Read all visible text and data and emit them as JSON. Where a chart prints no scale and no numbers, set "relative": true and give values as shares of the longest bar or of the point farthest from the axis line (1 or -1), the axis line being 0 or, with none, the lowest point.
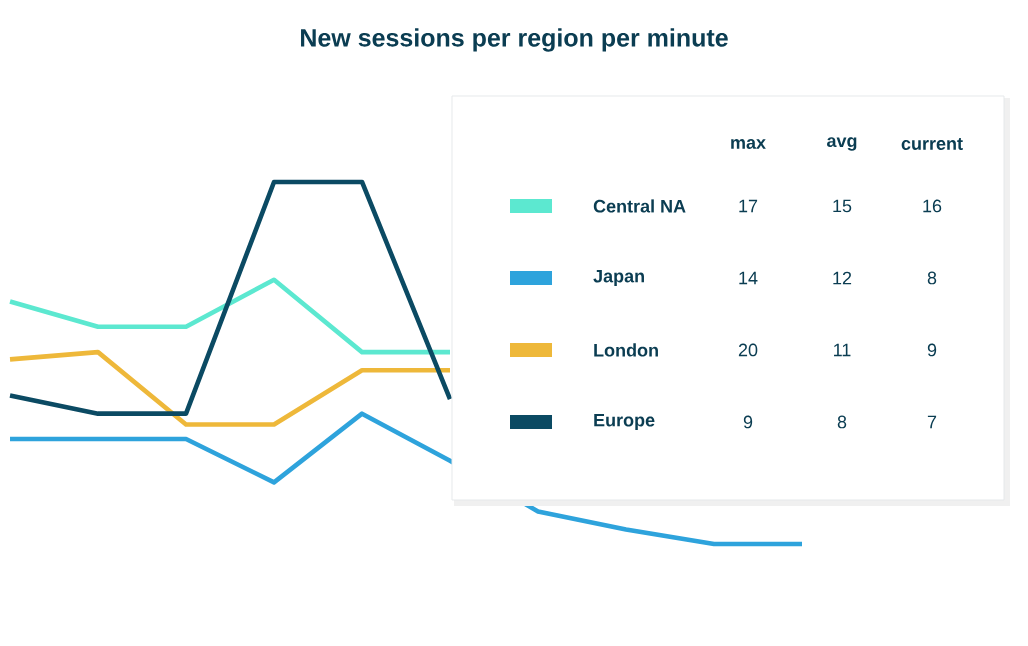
{
  "chart_data": {
    "type": "line",
    "title": "New sessions per region per minute",
    "relative": true,
    "marker": "none",
    "legend": "top right",
    "categories": [
      null,
      null,
      null,
      null,
      null,
      null,
      null,
      null,
      null,
      null,
      null
    ],
    "series": [
      {
        "name": "Central NA",
        "color": "#5ce8d0",
        "values": [
          0.67,
          0.6,
          0.6,
          0.73,
          0.53,
          0.53,
          null,
          null,
          null,
          null,
          null
        ]
      },
      {
        "name": "Japan",
        "color": "#2ea3dc",
        "values": [
          0.29,
          0.29,
          0.29,
          0.17,
          0.36,
          0.23,
          0.09,
          0.04,
          0,
          0,
          null
        ]
      },
      {
        "name": "London",
        "color": "#eeb83a",
        "values": [
          0.51,
          0.53,
          0.33,
          0.33,
          0.48,
          0.48,
          null,
          null,
          null,
          null,
          null
        ]
      },
      {
        "name": "Europe",
        "color": "#0b4a63",
        "values": [
          0.41,
          0.36,
          0.36,
          1,
          1,
          0.4,
          null,
          null,
          null,
          null,
          null
        ]
      }
    ],
    "annotations": [
      "max",
      "avg",
      "current",
      "17",
      "15",
      "16",
      "14",
      "12",
      "8",
      "20",
      "11",
      "9",
      "9",
      "8",
      "7"
    ]
  }
}
